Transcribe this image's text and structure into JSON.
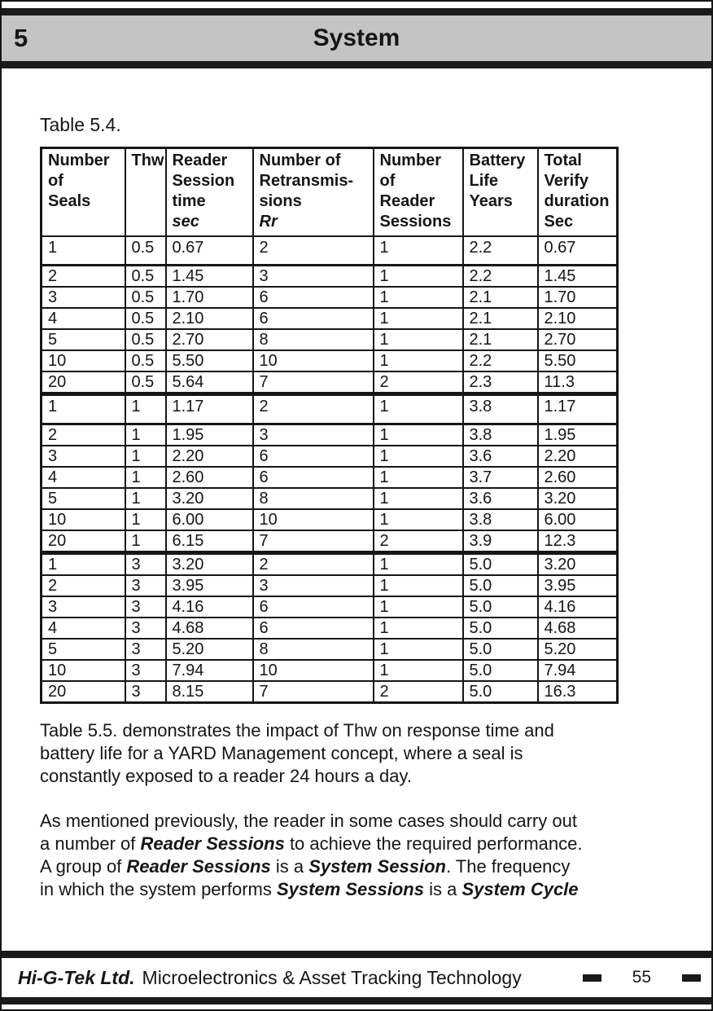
{
  "header": {
    "chapter_number": "5",
    "chapter_title": "System"
  },
  "table": {
    "caption": "Table 5.4.",
    "columns": [
      {
        "lines": [
          {
            "text": "Number"
          },
          {
            "text": "of"
          },
          {
            "text": "Seals"
          }
        ]
      },
      {
        "lines": [
          {
            "text": "Thw"
          }
        ]
      },
      {
        "lines": [
          {
            "text": "Reader"
          },
          {
            "text": "Session"
          },
          {
            "text": "time"
          },
          {
            "text": "sec",
            "italic": true
          }
        ]
      },
      {
        "lines": [
          {
            "text": "Number of"
          },
          {
            "text": "Retransmis-"
          },
          {
            "text": "sions"
          },
          {
            "text": "Rr",
            "italic": true
          }
        ]
      },
      {
        "lines": [
          {
            "text": "Number"
          },
          {
            "text": "of"
          },
          {
            "text": "Reader"
          },
          {
            "text": "Sessions"
          }
        ]
      },
      {
        "lines": [
          {
            "text": "Battery"
          },
          {
            "text": "Life"
          },
          {
            "text": "Years"
          }
        ]
      },
      {
        "lines": [
          {
            "text": "Total"
          },
          {
            "text": "Verify"
          },
          {
            "text": "duration"
          },
          {
            "text": "Sec"
          }
        ]
      }
    ],
    "groups": [
      {
        "thw": "0.5",
        "rows": [
          [
            "1",
            "0.5",
            "0.67",
            "2",
            "1",
            "2.2",
            "0.67"
          ],
          [
            "2",
            "0.5",
            "1.45",
            "3",
            "1",
            "2.2",
            "1.45"
          ],
          [
            "3",
            "0.5",
            "1.70",
            "6",
            "1",
            "2.1",
            "1.70"
          ],
          [
            "4",
            "0.5",
            "2.10",
            "6",
            "1",
            "2.1",
            "2.10"
          ],
          [
            "5",
            "0.5",
            "2.70",
            "8",
            "1",
            "2.1",
            "2.70"
          ],
          [
            "10",
            "0.5",
            "5.50",
            "10",
            "1",
            "2.2",
            "5.50"
          ],
          [
            "20",
            "0.5",
            "5.64",
            "7",
            "2",
            "2.3",
            "11.3"
          ]
        ]
      },
      {
        "thw": "1",
        "rows": [
          [
            "1",
            "1",
            "1.17",
            "2",
            "1",
            "3.8",
            "1.17"
          ],
          [
            "2",
            "1",
            "1.95",
            "3",
            "1",
            "3.8",
            "1.95"
          ],
          [
            "3",
            "1",
            "2.20",
            "6",
            "1",
            "3.6",
            "2.20"
          ],
          [
            "4",
            "1",
            "2.60",
            "6",
            "1",
            "3.7",
            "2.60"
          ],
          [
            "5",
            "1",
            "3.20",
            "8",
            "1",
            "3.6",
            "3.20"
          ],
          [
            "10",
            "1",
            "6.00",
            "10",
            "1",
            "3.8",
            "6.00"
          ],
          [
            "20",
            "1",
            "6.15",
            "7",
            "2",
            "3.9",
            "12.3"
          ]
        ]
      },
      {
        "thw": "3",
        "rows": [
          [
            "1",
            "3",
            "3.20",
            "2",
            "1",
            "5.0",
            "3.20"
          ],
          [
            "2",
            "3",
            "3.95",
            "3",
            "1",
            "5.0",
            "3.95"
          ],
          [
            "3",
            "3",
            "4.16",
            "6",
            "1",
            "5.0",
            "4.16"
          ],
          [
            "4",
            "3",
            "4.68",
            "6",
            "1",
            "5.0",
            "4.68"
          ],
          [
            "5",
            "3",
            "5.20",
            "8",
            "1",
            "5.0",
            "5.20"
          ],
          [
            "10",
            "3",
            "7.94",
            "10",
            "1",
            "5.0",
            "7.94"
          ],
          [
            "20",
            "3",
            "8.15",
            "7",
            "2",
            "5.0",
            "16.3"
          ]
        ]
      }
    ]
  },
  "paragraphs": [
    {
      "lines": [
        [
          {
            "t": "Table 5.5. demonstrates the impact of Thw on response time and"
          }
        ],
        [
          {
            "t": "battery life for a YARD Management concept, where a seal is"
          }
        ],
        [
          {
            "t": "constantly exposed to a reader 24 hours a day."
          }
        ]
      ]
    },
    {
      "lines": [
        [
          {
            "t": "As mentioned previously, the reader in some cases should carry out"
          }
        ],
        [
          {
            "t": "a number of "
          },
          {
            "t": "Reader Sessions",
            "bi": true
          },
          {
            "t": " to achieve the required performance."
          }
        ],
        [
          {
            "t": "A group of "
          },
          {
            "t": "Reader Sessions",
            "bi": true
          },
          {
            "t": " is a "
          },
          {
            "t": "System Session",
            "bi": true
          },
          {
            "t": ". The frequency"
          }
        ],
        [
          {
            "t": "in which the system performs "
          },
          {
            "t": "System Sessions",
            "bi": true
          },
          {
            "t": " is a "
          },
          {
            "t": "System Cycle",
            "bi": true
          }
        ]
      ]
    }
  ],
  "footer": {
    "company": "Hi-G-Tek Ltd.",
    "tagline": "Microelectronics & Asset Tracking Technology",
    "page_number": "55"
  },
  "colors": {
    "banner_gray": "#c4c4c4",
    "bar_black": "#1a1a1a",
    "text_black": "#161616"
  }
}
